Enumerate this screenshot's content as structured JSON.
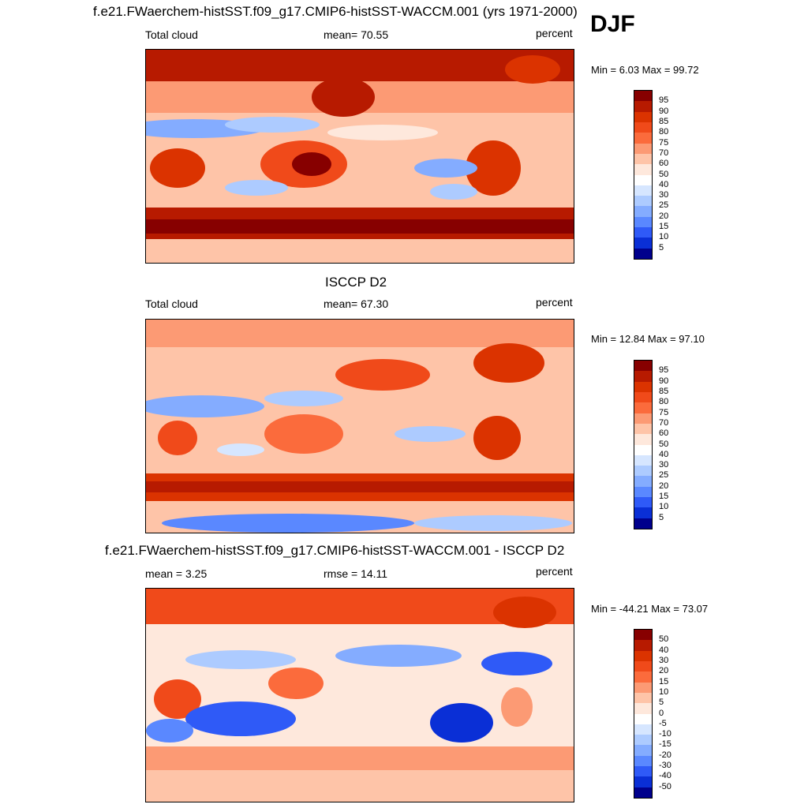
{
  "season": "DJF",
  "panels": [
    {
      "title": "f.e21.FWaerchem-histSST.f09_g17.CMIP6-histSST-WACCM.001 (yrs 1971-2000)",
      "left_label": "Total cloud",
      "center_label": "mean=  70.55",
      "right_label": "percent",
      "minmax": "Min =   6.03 Max =  99.72",
      "colorbar_ticks": [
        "95",
        "90",
        "85",
        "80",
        "75",
        "70",
        "60",
        "50",
        "40",
        "30",
        "25",
        "20",
        "15",
        "10",
        "5"
      ],
      "colors": [
        "#870000",
        "#B71A00",
        "#DB3300",
        "#F04A1A",
        "#FB6B3C",
        "#FC9A74",
        "#FEC4A8",
        "#FEE8DC",
        "#FFFFFF",
        "#D6E6FF",
        "#ADCBFF",
        "#84ACFF",
        "#5A88FF",
        "#2F5AF7",
        "#0A2FD6",
        "#00008C"
      ]
    },
    {
      "title": "ISCCP D2",
      "left_label": "Total cloud",
      "center_label": "mean=  67.30",
      "right_label": "percent",
      "minmax": "Min =  12.84 Max =  97.10",
      "colorbar_ticks": [
        "95",
        "90",
        "85",
        "80",
        "75",
        "70",
        "60",
        "50",
        "40",
        "30",
        "25",
        "20",
        "15",
        "10",
        "5"
      ],
      "colors": [
        "#870000",
        "#B71A00",
        "#DB3300",
        "#F04A1A",
        "#FB6B3C",
        "#FC9A74",
        "#FEC4A8",
        "#FEE8DC",
        "#FFFFFF",
        "#D6E6FF",
        "#ADCBFF",
        "#84ACFF",
        "#5A88FF",
        "#2F5AF7",
        "#0A2FD6",
        "#00008C"
      ]
    },
    {
      "title": "f.e21.FWaerchem-histSST.f09_g17.CMIP6-histSST-WACCM.001 - ISCCP D2",
      "left_label": "mean =   3.25",
      "center_label": "rmse =  14.11",
      "right_label": "percent",
      "minmax": "Min = -44.21 Max =  73.07",
      "colorbar_ticks": [
        "50",
        "40",
        "30",
        "20",
        "15",
        "10",
        "5",
        "0",
        "-5",
        "-10",
        "-15",
        "-20",
        "-30",
        "-40",
        "-50"
      ],
      "colors": [
        "#870000",
        "#B71A00",
        "#DB3300",
        "#F04A1A",
        "#FB6B3C",
        "#FC9A74",
        "#FEC4A8",
        "#FEE8DC",
        "#FFFFFF",
        "#D6E6FF",
        "#ADCBFF",
        "#84ACFF",
        "#5A88FF",
        "#2F5AF7",
        "#0A2FD6",
        "#00008C"
      ]
    }
  ],
  "chart_data": [
    {
      "type": "heatmap",
      "title": "f.e21.FWaerchem-histSST.f09_g17.CMIP6-histSST-WACCM.001 (yrs 1971-2000)",
      "variable": "Total cloud",
      "units": "percent",
      "mean": 70.55,
      "min": 6.03,
      "max": 99.72,
      "contour_levels": [
        5,
        10,
        15,
        20,
        25,
        30,
        40,
        50,
        60,
        70,
        75,
        80,
        85,
        90,
        95
      ]
    },
    {
      "type": "heatmap",
      "title": "ISCCP D2",
      "variable": "Total cloud",
      "units": "percent",
      "mean": 67.3,
      "min": 12.84,
      "max": 97.1,
      "contour_levels": [
        5,
        10,
        15,
        20,
        25,
        30,
        40,
        50,
        60,
        70,
        75,
        80,
        85,
        90,
        95
      ]
    },
    {
      "type": "heatmap",
      "title": "f.e21.FWaerchem-histSST.f09_g17.CMIP6-histSST-WACCM.001 - ISCCP D2",
      "units": "percent",
      "mean": 3.25,
      "rmse": 14.11,
      "min": -44.21,
      "max": 73.07,
      "contour_levels": [
        -50,
        -40,
        -30,
        -20,
        -15,
        -10,
        -5,
        0,
        5,
        10,
        15,
        20,
        30,
        40,
        50
      ]
    }
  ]
}
